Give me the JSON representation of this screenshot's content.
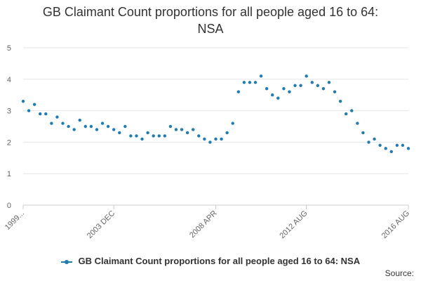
{
  "chart_data": {
    "type": "scatter",
    "title_line1": "GB Claimant Count proportions for all people aged 16 to 64:",
    "title_line2": "NSA",
    "xlabel": "",
    "ylabel": "",
    "ylim": [
      0,
      5
    ],
    "yticks": [
      "0",
      "1",
      "2",
      "3",
      "4",
      "5"
    ],
    "grid": true,
    "x_tick_labels": [
      "1999...",
      "2003 DEC",
      "2008 APR",
      "2012 AUG",
      "2016 AUG"
    ],
    "x_tick_positions": [
      0,
      16,
      34,
      50,
      68
    ],
    "series": [
      {
        "name": "GB Claimant Count proportions for all people aged 16 to 64: NSA",
        "color": "#1f7cb3",
        "values": [
          3.3,
          3.0,
          3.2,
          2.9,
          2.9,
          2.6,
          2.8,
          2.6,
          2.5,
          2.4,
          2.7,
          2.5,
          2.5,
          2.4,
          2.6,
          2.5,
          2.4,
          2.3,
          2.5,
          2.2,
          2.2,
          2.1,
          2.3,
          2.2,
          2.2,
          2.2,
          2.5,
          2.4,
          2.4,
          2.3,
          2.4,
          2.2,
          2.1,
          2.0,
          2.1,
          2.1,
          2.3,
          2.6,
          3.6,
          3.9,
          3.9,
          3.9,
          4.1,
          3.7,
          3.5,
          3.4,
          3.7,
          3.6,
          3.8,
          3.8,
          4.1,
          3.9,
          3.8,
          3.7,
          3.9,
          3.6,
          3.3,
          2.9,
          3.0,
          2.6,
          2.3,
          2.0,
          2.1,
          1.9,
          1.8,
          1.7,
          1.9,
          1.9,
          1.8
        ]
      }
    ]
  },
  "legend": {
    "label": "GB Claimant Count proportions for all people aged 16 to 64: NSA"
  },
  "source_label": "Source:"
}
